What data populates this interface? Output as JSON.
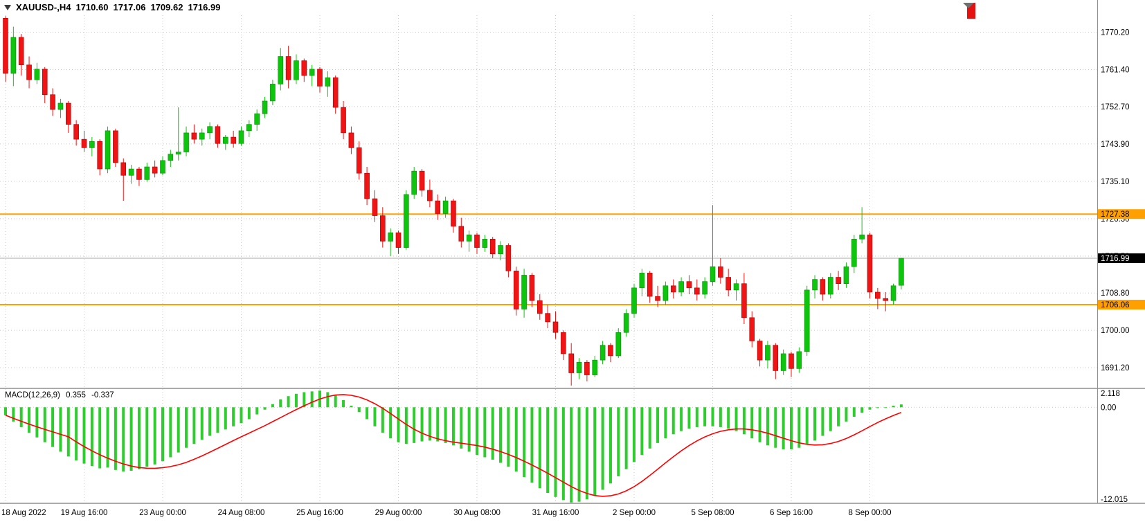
{
  "colors": {
    "background": "#ffffff",
    "grid": "#c9c9c9",
    "bull": "#0ec50e",
    "bull_border": "#0a8a0a",
    "bear": "#f01414",
    "bear_border": "#b00000",
    "macd_hist": "#2ecc2e",
    "macd_signal": "#ff0000",
    "hline": "#ffa000",
    "price_marker_bg": "#000000",
    "price_marker_text": "#ffffff",
    "axis_text": "#000000",
    "separator": "#8f8f8f",
    "current_price_line": "#a9a9a9",
    "shift_marker": "#6f6f6f",
    "corner_marker": "#e51010"
  },
  "header": {
    "symbol": "XAUUSD-,H4",
    "open": "1710.60",
    "high": "1717.06",
    "low": "1709.62",
    "close": "1716.99"
  },
  "indicator_label": {
    "name": "MACD(12,26,9)",
    "value_main": "0.355",
    "value_signal": "-0.337"
  },
  "chart_data": {
    "type": "candlestick",
    "symbol": "XAUUSD-",
    "timeframe": "H4",
    "ylim": [
      1686.5,
      1774.2
    ],
    "price_gridlines": [
      1770.2,
      1761.4,
      1752.7,
      1743.9,
      1735.1,
      1726.3,
      1717.5,
      1708.8,
      1700.0,
      1691.2
    ],
    "hlines": [
      {
        "price": 1727.38,
        "label": "1727.38"
      },
      {
        "price": 1706.06,
        "label": "1706.06"
      }
    ],
    "current_price": {
      "price": 1716.99,
      "label": "1716.99"
    },
    "time_ticks": [
      {
        "index": 0,
        "label": "18 Aug 2022"
      },
      {
        "index": 10,
        "label": "19 Aug 16:00"
      },
      {
        "index": 20,
        "label": "23 Aug 00:00"
      },
      {
        "index": 30,
        "label": "24 Aug 08:00"
      },
      {
        "index": 40,
        "label": "25 Aug 16:00"
      },
      {
        "index": 50,
        "label": "29 Aug 00:00"
      },
      {
        "index": 60,
        "label": "30 Aug 08:00"
      },
      {
        "index": 70,
        "label": "31 Aug 16:00"
      },
      {
        "index": 80,
        "label": "2 Sep 00:00"
      },
      {
        "index": 90,
        "label": "5 Sep 08:00"
      },
      {
        "index": 100,
        "label": "6 Sep 16:00"
      },
      {
        "index": 110,
        "label": "8 Sep 00:00"
      }
    ],
    "candles": [
      [
        1773.5,
        1774.0,
        1758.5,
        1760.5
      ],
      [
        1760.5,
        1771.5,
        1757.5,
        1769.0
      ],
      [
        1769.0,
        1769.8,
        1760.0,
        1762.5
      ],
      [
        1762.5,
        1764.5,
        1757.0,
        1759.0
      ],
      [
        1759.0,
        1763.0,
        1758.0,
        1761.5
      ],
      [
        1761.5,
        1762.0,
        1753.5,
        1755.5
      ],
      [
        1755.5,
        1757.0,
        1750.5,
        1752.0
      ],
      [
        1752.0,
        1754.5,
        1750.0,
        1753.5
      ],
      [
        1753.5,
        1754.0,
        1746.5,
        1748.5
      ],
      [
        1748.5,
        1749.5,
        1743.5,
        1745.0
      ],
      [
        1745.0,
        1747.0,
        1742.0,
        1743.0
      ],
      [
        1743.0,
        1745.5,
        1741.0,
        1744.5
      ],
      [
        1744.5,
        1745.0,
        1736.5,
        1738.0
      ],
      [
        1738.0,
        1748.0,
        1737.0,
        1747.0
      ],
      [
        1747.0,
        1747.5,
        1738.5,
        1739.5
      ],
      [
        1739.5,
        1740.5,
        1730.5,
        1736.5
      ],
      [
        1736.5,
        1739.0,
        1734.5,
        1738.0
      ],
      [
        1738.0,
        1738.5,
        1734.0,
        1735.5
      ],
      [
        1735.5,
        1739.5,
        1735.0,
        1738.5
      ],
      [
        1738.5,
        1740.0,
        1736.0,
        1737.0
      ],
      [
        1737.0,
        1741.0,
        1736.5,
        1740.0
      ],
      [
        1740.0,
        1742.5,
        1738.5,
        1741.5
      ],
      [
        1741.5,
        1752.5,
        1740.0,
        1742.0
      ],
      [
        1742.0,
        1748.0,
        1741.0,
        1746.5
      ],
      [
        1746.5,
        1748.5,
        1744.0,
        1745.0
      ],
      [
        1745.0,
        1747.5,
        1743.5,
        1746.5
      ],
      [
        1746.5,
        1749.0,
        1745.0,
        1748.0
      ],
      [
        1748.0,
        1748.5,
        1743.0,
        1744.0
      ],
      [
        1744.0,
        1746.0,
        1742.5,
        1745.5
      ],
      [
        1745.5,
        1747.0,
        1743.0,
        1744.0
      ],
      [
        1744.0,
        1748.0,
        1743.5,
        1747.0
      ],
      [
        1747.0,
        1749.5,
        1745.5,
        1748.5
      ],
      [
        1748.5,
        1752.0,
        1747.0,
        1751.0
      ],
      [
        1751.0,
        1755.0,
        1750.0,
        1754.0
      ],
      [
        1754.0,
        1759.0,
        1753.0,
        1758.0
      ],
      [
        1758.0,
        1766.5,
        1756.5,
        1764.5
      ],
      [
        1764.5,
        1767.0,
        1757.0,
        1759.0
      ],
      [
        1759.0,
        1765.0,
        1758.0,
        1763.5
      ],
      [
        1763.5,
        1764.0,
        1758.5,
        1760.0
      ],
      [
        1760.0,
        1762.5,
        1757.5,
        1761.5
      ],
      [
        1761.5,
        1762.0,
        1756.0,
        1757.5
      ],
      [
        1757.5,
        1761.0,
        1755.0,
        1759.5
      ],
      [
        1759.5,
        1760.0,
        1751.0,
        1752.5
      ],
      [
        1752.5,
        1754.0,
        1745.0,
        1746.5
      ],
      [
        1746.5,
        1748.0,
        1741.5,
        1743.0
      ],
      [
        1743.0,
        1744.5,
        1735.5,
        1737.0
      ],
      [
        1737.0,
        1738.5,
        1729.5,
        1731.0
      ],
      [
        1731.0,
        1733.0,
        1725.5,
        1727.0
      ],
      [
        1727.0,
        1729.0,
        1719.5,
        1721.0
      ],
      [
        1721.0,
        1724.0,
        1717.5,
        1723.0
      ],
      [
        1723.0,
        1723.5,
        1718.0,
        1719.5
      ],
      [
        1719.5,
        1733.0,
        1719.0,
        1732.0
      ],
      [
        1732.0,
        1738.5,
        1731.0,
        1737.5
      ],
      [
        1737.5,
        1738.0,
        1731.5,
        1733.0
      ],
      [
        1733.0,
        1735.5,
        1729.0,
        1730.5
      ],
      [
        1730.5,
        1732.0,
        1726.0,
        1727.5
      ],
      [
        1727.5,
        1731.5,
        1726.5,
        1730.5
      ],
      [
        1730.5,
        1731.0,
        1723.0,
        1724.5
      ],
      [
        1724.5,
        1726.5,
        1719.5,
        1721.0
      ],
      [
        1721.0,
        1723.5,
        1718.5,
        1722.5
      ],
      [
        1722.5,
        1723.0,
        1718.0,
        1719.5
      ],
      [
        1719.5,
        1722.5,
        1718.5,
        1721.5
      ],
      [
        1721.5,
        1722.0,
        1717.0,
        1718.0
      ],
      [
        1718.0,
        1721.0,
        1716.5,
        1720.0
      ],
      [
        1720.0,
        1720.5,
        1712.5,
        1714.0
      ],
      [
        1714.0,
        1715.0,
        1703.5,
        1705.0
      ],
      [
        1705.0,
        1714.5,
        1703.0,
        1713.0
      ],
      [
        1713.0,
        1713.5,
        1705.5,
        1707.0
      ],
      [
        1707.0,
        1708.5,
        1702.5,
        1704.0
      ],
      [
        1704.0,
        1706.0,
        1700.5,
        1702.0
      ],
      [
        1702.0,
        1704.5,
        1698.0,
        1699.5
      ],
      [
        1699.5,
        1700.0,
        1693.0,
        1694.5
      ],
      [
        1694.5,
        1697.0,
        1687.0,
        1690.0
      ],
      [
        1690.0,
        1693.5,
        1688.5,
        1692.5
      ],
      [
        1692.5,
        1693.0,
        1688.0,
        1689.5
      ],
      [
        1689.5,
        1694.0,
        1689.0,
        1693.0
      ],
      [
        1693.0,
        1697.5,
        1692.0,
        1696.5
      ],
      [
        1696.5,
        1697.0,
        1692.5,
        1694.0
      ],
      [
        1694.0,
        1700.5,
        1693.5,
        1699.5
      ],
      [
        1699.5,
        1705.0,
        1698.5,
        1704.0
      ],
      [
        1704.0,
        1711.0,
        1703.0,
        1710.0
      ],
      [
        1710.0,
        1714.5,
        1708.0,
        1713.5
      ],
      [
        1713.5,
        1714.0,
        1706.5,
        1708.0
      ],
      [
        1708.0,
        1710.5,
        1705.5,
        1707.0
      ],
      [
        1707.0,
        1711.5,
        1706.0,
        1710.5
      ],
      [
        1710.5,
        1712.0,
        1707.5,
        1709.0
      ],
      [
        1709.0,
        1712.5,
        1708.0,
        1711.5
      ],
      [
        1711.5,
        1713.0,
        1708.5,
        1710.0
      ],
      [
        1710.0,
        1712.0,
        1707.0,
        1708.5
      ],
      [
        1708.5,
        1712.5,
        1707.5,
        1711.5
      ],
      [
        1711.5,
        1729.5,
        1710.5,
        1715.0
      ],
      [
        1715.0,
        1717.0,
        1711.0,
        1712.5
      ],
      [
        1712.5,
        1714.5,
        1708.0,
        1709.5
      ],
      [
        1709.5,
        1712.0,
        1707.0,
        1711.0
      ],
      [
        1711.0,
        1713.5,
        1701.5,
        1703.0
      ],
      [
        1703.0,
        1704.5,
        1696.0,
        1697.5
      ],
      [
        1697.5,
        1698.0,
        1691.5,
        1693.0
      ],
      [
        1693.0,
        1697.5,
        1691.0,
        1696.5
      ],
      [
        1696.5,
        1697.0,
        1688.5,
        1690.5
      ],
      [
        1690.5,
        1695.5,
        1689.5,
        1694.5
      ],
      [
        1694.5,
        1695.0,
        1689.0,
        1691.0
      ],
      [
        1691.0,
        1696.0,
        1690.0,
        1695.0
      ],
      [
        1695.0,
        1710.5,
        1694.0,
        1709.5
      ],
      [
        1709.5,
        1713.0,
        1707.5,
        1712.0
      ],
      [
        1712.0,
        1712.5,
        1707.0,
        1708.5
      ],
      [
        1708.5,
        1713.5,
        1707.5,
        1712.5
      ],
      [
        1712.5,
        1714.0,
        1709.5,
        1711.0
      ],
      [
        1711.0,
        1716.0,
        1710.0,
        1715.0
      ],
      [
        1715.0,
        1722.5,
        1713.5,
        1721.5
      ],
      [
        1721.5,
        1729.0,
        1720.5,
        1722.5
      ],
      [
        1722.5,
        1723.0,
        1707.5,
        1709.0
      ],
      [
        1709.0,
        1710.0,
        1705.0,
        1707.5
      ],
      [
        1707.5,
        1709.0,
        1704.5,
        1707.0
      ],
      [
        1707.0,
        1711.0,
        1706.0,
        1710.5
      ],
      [
        1710.6,
        1717.06,
        1709.62,
        1716.99
      ]
    ],
    "macd": {
      "type": "histogram+line",
      "label": "MACD(12,26,9)",
      "ylim": [
        -12.015,
        2.118
      ],
      "axis_labels": [
        "2.118",
        "0.00",
        "-12.015"
      ],
      "signal_period": 9,
      "values": [
        -1.0,
        -1.8,
        -2.5,
        -3.2,
        -3.8,
        -4.4,
        -5.0,
        -5.6,
        -6.2,
        -6.7,
        -7.1,
        -7.4,
        -7.7,
        -7.6,
        -7.9,
        -8.1,
        -8.0,
        -7.8,
        -7.5,
        -7.2,
        -6.8,
        -6.3,
        -5.7,
        -5.1,
        -4.6,
        -4.1,
        -3.6,
        -3.2,
        -2.8,
        -2.4,
        -2.0,
        -1.5,
        -0.9,
        -0.3,
        0.4,
        1.0,
        1.4,
        1.7,
        1.9,
        2.0,
        2.1,
        1.9,
        1.5,
        0.9,
        0.2,
        -0.6,
        -1.5,
        -2.4,
        -3.2,
        -3.9,
        -4.4,
        -4.6,
        -4.5,
        -4.3,
        -4.2,
        -4.3,
        -4.5,
        -4.8,
        -5.2,
        -5.6,
        -6.0,
        -6.3,
        -6.6,
        -7.0,
        -7.5,
        -8.1,
        -8.8,
        -9.5,
        -10.2,
        -10.8,
        -11.3,
        -11.7,
        -12.0,
        -11.9,
        -11.6,
        -11.1,
        -10.4,
        -9.6,
        -8.7,
        -7.8,
        -6.9,
        -6.0,
        -5.2,
        -4.5,
        -3.9,
        -3.4,
        -3.0,
        -2.7,
        -2.5,
        -2.4,
        -2.4,
        -2.5,
        -2.7,
        -3.0,
        -3.4,
        -3.9,
        -4.4,
        -4.8,
        -5.1,
        -5.3,
        -5.3,
        -5.1,
        -4.7,
        -4.2,
        -3.6,
        -3.0,
        -2.4,
        -1.8,
        -1.2,
        -0.7,
        -0.3,
        -0.1,
        0.0,
        0.2,
        0.355
      ]
    }
  }
}
